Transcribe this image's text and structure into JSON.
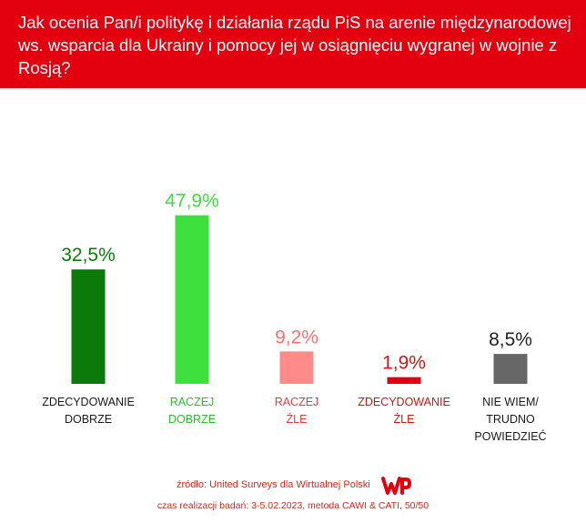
{
  "header": {
    "title": "Jak ocenia Pan/i politykę i działania rządu PiS na arenie międzynarodowej ws. wsparcia dla Ukrainy i pomocy jej w osiągnięciu wygranej w wojnie z Rosją?",
    "background_color": "#e3000f"
  },
  "chart_data": {
    "type": "bar",
    "title": "Jak ocenia Pan/i politykę i działania rządu PiS na arenie międzynarodowej ws. wsparcia dla Ukrainy i pomocy jej w osiągnięciu wygranej w wojnie z Rosją?",
    "categories": [
      [
        "ZDECYDOWANIE",
        "DOBRZE"
      ],
      [
        "RACZEJ",
        "DOBRZE"
      ],
      [
        "RACZEJ",
        "ŹLE"
      ],
      [
        "ZDECYDOWANIE",
        "ŹLE"
      ],
      [
        "NIE WIEM/",
        "TRUDNO",
        "POWIEDZIEĆ"
      ]
    ],
    "values": [
      32.5,
      47.9,
      9.2,
      1.9,
      8.5
    ],
    "value_labels": [
      "32,5%",
      "47,9%",
      "9,2%",
      "1,9%",
      "8,5%"
    ],
    "bar_colors": [
      "#0b7a0b",
      "#3ee03e",
      "#ff8a8a",
      "#e3000f",
      "#676767"
    ],
    "label_colors": [
      "#0b7a0b",
      "#3ee03e",
      "#ff7070",
      "#d31414",
      "#222222"
    ],
    "category_colors": [
      "#1a1a1a",
      "#2dbd2d",
      "#e8383d",
      "#d31414",
      "#1a1a1a"
    ],
    "ylim": [
      0,
      50
    ],
    "grid": false,
    "legend": "none"
  },
  "footer": {
    "source": "źródło: United Surveys dla Wirtualnej Polski",
    "date": "czas realizacji badań: 3-5.02.2023, metoda CAWI & CATI, 50/50",
    "logo_icon": "wp-logo-icon",
    "logo_color": "#e3000f"
  }
}
